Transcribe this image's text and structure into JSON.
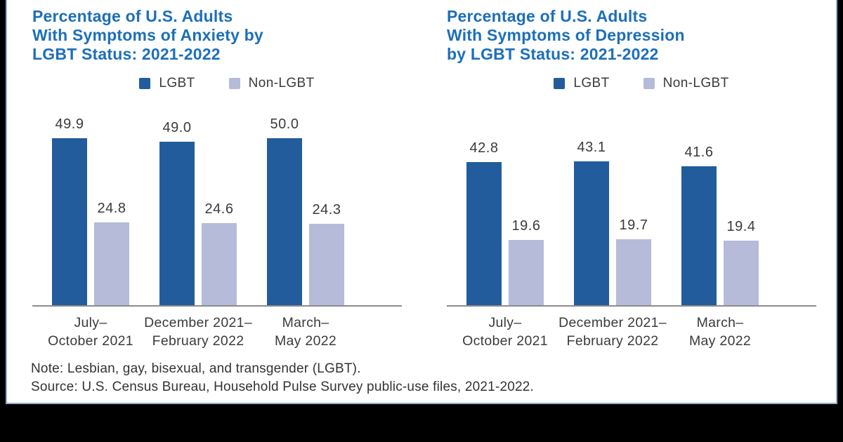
{
  "page": {
    "background_color": "#000000",
    "card_background": "#ffffff",
    "card_border_color": "#94aed0"
  },
  "colors": {
    "title_blue": "#1d6fb8",
    "lgbt_bar": "#235c9d",
    "non_lgbt_bar": "#b5bbd9",
    "axis_line": "#8c8c8c",
    "label_text": "#3b3b3b"
  },
  "footer": {
    "note": "Note: Lesbian, gay, bisexual, and transgender (LGBT).",
    "source": "Source: U.S. Census Bureau, Household Pulse Survey public-use files, 2021-2022."
  },
  "chart_data": [
    {
      "type": "bar",
      "title": "Percentage of U.S. Adults With Symptoms of Anxiety by LGBT Status: 2021-2022",
      "title_lines": [
        "Percentage of U.S. Adults",
        "With Symptoms of Anxiety by",
        "LGBT Status: 2021-2022"
      ],
      "categories": [
        "July–October 2021",
        "December 2021–February 2022",
        "March–May 2022"
      ],
      "category_lines": [
        [
          "July–",
          "October 2021"
        ],
        [
          "December 2021–",
          "February 2022"
        ],
        [
          "March–",
          "May 2022"
        ]
      ],
      "series": [
        {
          "name": "LGBT",
          "color": "#235c9d",
          "values": [
            49.9,
            49.0,
            50.0
          ]
        },
        {
          "name": "Non-LGBT",
          "color": "#b5bbd9",
          "values": [
            24.8,
            24.6,
            24.3
          ]
        }
      ],
      "value_labels": [
        [
          "49.9",
          "49.0",
          "50.0"
        ],
        [
          "24.8",
          "24.6",
          "24.3"
        ]
      ],
      "xlabel": "",
      "ylabel": "",
      "ylim": [
        0,
        55
      ],
      "grid": false,
      "legend_position": "top"
    },
    {
      "type": "bar",
      "title": "Percentage of U.S. Adults With Symptoms of Depression by LGBT Status: 2021-2022",
      "title_lines": [
        "Percentage of U.S. Adults",
        "With Symptoms of Depression",
        "by LGBT Status: 2021-2022"
      ],
      "categories": [
        "July–October 2021",
        "December 2021–February 2022",
        "March–May 2022"
      ],
      "category_lines": [
        [
          "July–",
          "October 2021"
        ],
        [
          "December 2021–",
          "February 2022"
        ],
        [
          "March–",
          "May 2022"
        ]
      ],
      "series": [
        {
          "name": "LGBT",
          "color": "#235c9d",
          "values": [
            42.8,
            43.1,
            41.6
          ]
        },
        {
          "name": "Non-LGBT",
          "color": "#b5bbd9",
          "values": [
            19.6,
            19.7,
            19.4
          ]
        }
      ],
      "value_labels": [
        [
          "42.8",
          "43.1",
          "41.6"
        ],
        [
          "19.6",
          "19.7",
          "19.4"
        ]
      ],
      "xlabel": "",
      "ylabel": "",
      "ylim": [
        0,
        55
      ],
      "grid": false,
      "legend_position": "top"
    }
  ]
}
